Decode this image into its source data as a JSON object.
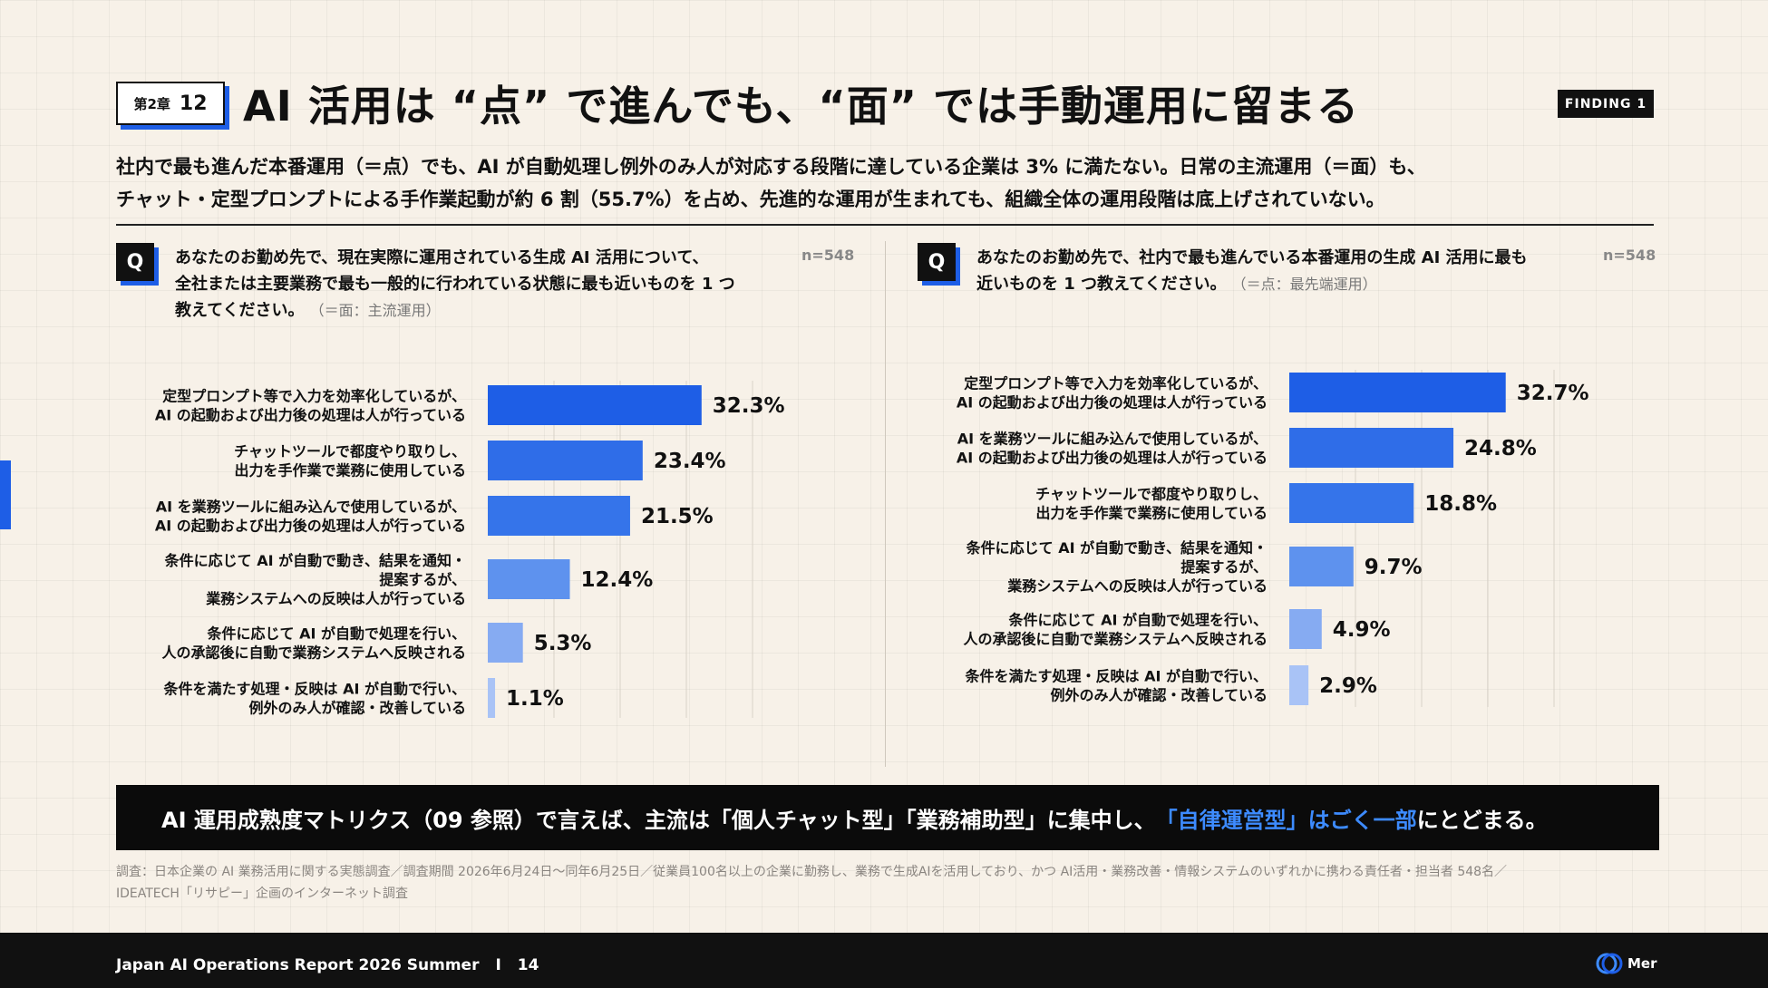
{
  "header": {
    "chapter_label": "第2章",
    "chapter_number": "12",
    "title": "AI 活用は “点” で進んでも、“面” では手動運用に留まる",
    "badge": "FINDING 1",
    "subtitle_line1": "社内で最も進んだ本番運用（＝点）でも、AI が自動処理し例外のみ人が対応する段階に達している企業は 3% に満たない。日常の主流運用（＝面）も、",
    "subtitle_line2": "チャット・定型プロンプトによる手作業起動が約 6 割（55.7%）を占め、先進的な運用が生まれても、組織全体の運用段階は底上げされていない。"
  },
  "left_question": {
    "badge": "Q",
    "line1": "あなたのお勤め先で、現在実際に運用されている生成 AI 活用について、",
    "line2": "全社または主要業務で最も一般的に行われている状態に最も近いものを 1 つ",
    "line3": "教えてください。",
    "note": "（＝面：主流運用）",
    "n": "n=548"
  },
  "right_question": {
    "badge": "Q",
    "line1": "あなたのお勤め先で、社内で最も進んでいる本番運用の生成 AI 活用に最も",
    "line2": "近いものを 1 つ教えてください。",
    "note": "（＝点：最先端運用）",
    "n": "n=548"
  },
  "chart_data": [
    {
      "type": "bar",
      "orientation": "horizontal",
      "categories": [
        [
          "定型プロンプト等で入力を効率化しているが、",
          "AI の起動および出力後の処理は人が行っている"
        ],
        [
          "チャットツールで都度やり取りし、",
          "出力を手作業で業務に使用している"
        ],
        [
          "AI を業務ツールに組み込んで使用しているが、",
          "AI の起動および出力後の処理は人が行っている"
        ],
        [
          "条件に応じて AI が自動で動き、結果を通知・",
          "提案するが、",
          "業務システムへの反映は人が行っている"
        ],
        [
          "条件に応じて AI が自動で処理を行い、",
          "人の承認後に自動で業務システムへ反映される"
        ],
        [
          "条件を満たす処理・反映は AI が自動で行い、",
          "例外のみ人が確認・改善している"
        ]
      ],
      "values": [
        32.3,
        23.4,
        21.5,
        12.4,
        5.3,
        1.1
      ],
      "value_labels": [
        "32.3%",
        "23.4%",
        "21.5%",
        "12.4%",
        "5.3%",
        "1.1%"
      ],
      "xlim": [
        0,
        40
      ],
      "grid": true,
      "colors": [
        "#1e5ee6",
        "#2f6de8",
        "#3574ea",
        "#5e92ee",
        "#86abf2",
        "#a9c3f6"
      ]
    },
    {
      "type": "bar",
      "orientation": "horizontal",
      "categories": [
        [
          "定型プロンプト等で入力を効率化しているが、",
          "AI の起動および出力後の処理は人が行っている"
        ],
        [
          "AI を業務ツールに組み込んで使用しているが、",
          "AI の起動および出力後の処理は人が行っている"
        ],
        [
          "チャットツールで都度やり取りし、",
          "出力を手作業で業務に使用している"
        ],
        [
          "条件に応じて AI が自動で動き、結果を通知・",
          "提案するが、",
          "業務システムへの反映は人が行っている"
        ],
        [
          "条件に応じて AI が自動で処理を行い、",
          "人の承認後に自動で業務システムへ反映される"
        ],
        [
          "条件を満たす処理・反映は AI が自動で行い、",
          "例外のみ人が確認・改善している"
        ]
      ],
      "values": [
        32.7,
        24.8,
        18.8,
        9.7,
        4.9,
        2.9
      ],
      "value_labels": [
        "32.7%",
        "24.8%",
        "18.8%",
        "9.7%",
        "4.9%",
        "2.9%"
      ],
      "xlim": [
        0,
        40
      ],
      "grid": true,
      "colors": [
        "#1e5ee6",
        "#2f6de8",
        "#3574ea",
        "#5e92ee",
        "#86abf2",
        "#a9c3f6"
      ]
    }
  ],
  "banner": {
    "text_before": "AI 運用成熟度マトリクス（09 参照）で言えば、主流は「個人チャット型」「業務補助型」に集中し、",
    "highlight": "「自律運営型」はごく一部",
    "text_after": "にとどまる。",
    "highlight_color": "#3d8bff"
  },
  "source": {
    "line1": "調査：日本企業の AI 業務活用に関する実態調査／調査期間 2026年6月24日〜同年6月25日／従業員100名以上の企業に勤務し、業務で生成AIを活用しており、かつ AI活用・業務改善・情報システムのいずれかに携わる責任者・担当者 548名／",
    "line2": "IDEATECH「リサピー」企画のインターネット調査"
  },
  "footer": {
    "report": "Japan AI Operations Report 2026 Summer",
    "separator": "I",
    "page": "14",
    "logo_text": "Mer"
  },
  "colors": {
    "accent": "#1e5ee6",
    "background": "#f7f1e8"
  }
}
